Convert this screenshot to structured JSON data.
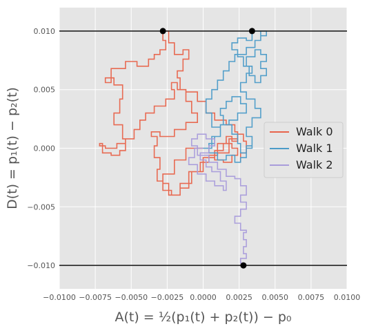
{
  "chart_data": {
    "type": "line",
    "title": "",
    "xlabel": "A(t) = ½(p₁(t) + p₂(t)) − p₀",
    "ylabel": "D(t) = p₁(t) − p₂(t)",
    "xlim": [
      -0.01,
      0.01
    ],
    "ylim": [
      -0.012,
      0.012
    ],
    "x_ticks": [
      -0.01,
      -0.0075,
      -0.005,
      -0.0025,
      0.0,
      0.0025,
      0.005,
      0.0075,
      0.01
    ],
    "x_tick_labels": [
      "−0.0100",
      "−0.0075",
      "−0.0050",
      "−0.0025",
      "0.0000",
      "0.0025",
      "0.0050",
      "0.0075",
      "0.0100"
    ],
    "y_ticks": [
      -0.01,
      -0.005,
      0.0,
      0.005,
      0.01
    ],
    "y_tick_labels": [
      "−0.010",
      "−0.005",
      "0.000",
      "0.005",
      "0.010"
    ],
    "grid": true,
    "legend_position": "center-right",
    "boundaries": [
      0.01,
      -0.01
    ],
    "boundary_color": "#222222",
    "series": [
      {
        "name": "Walk 0",
        "color": "#E8634A",
        "path": [
          [
            0.0,
            0.0
          ],
          [
            -0.0012,
            -0.001
          ],
          [
            -0.002,
            -0.0022
          ],
          [
            -0.0028,
            -0.003
          ],
          [
            -0.0024,
            -0.004
          ],
          [
            -0.0016,
            -0.0034
          ],
          [
            -0.001,
            -0.002
          ],
          [
            -0.0002,
            -0.0012
          ],
          [
            0.0004,
            -0.0006
          ],
          [
            0.001,
            0.0004
          ],
          [
            0.0016,
            0.001
          ],
          [
            0.002,
            0.0006
          ],
          [
            0.0024,
            0.0014
          ],
          [
            0.0022,
            0.002
          ],
          [
            0.0016,
            0.0024
          ],
          [
            0.0008,
            0.003
          ],
          [
            0.0002,
            0.004
          ],
          [
            -0.0004,
            0.0048
          ],
          [
            -0.0012,
            0.005
          ],
          [
            -0.0018,
            0.0056
          ],
          [
            -0.0022,
            0.005
          ],
          [
            -0.002,
            0.0042
          ],
          [
            -0.0026,
            0.0036
          ],
          [
            -0.0034,
            0.003
          ],
          [
            -0.004,
            0.0024
          ],
          [
            -0.0044,
            0.0016
          ],
          [
            -0.0048,
            0.0008
          ],
          [
            -0.0054,
            0.0004
          ],
          [
            -0.006,
            0.0
          ],
          [
            -0.0068,
            0.0002
          ],
          [
            -0.0072,
            0.0004
          ],
          [
            -0.007,
            -0.0004
          ],
          [
            -0.0064,
            -0.0006
          ],
          [
            -0.0058,
            -0.0002
          ],
          [
            -0.0054,
            0.0008
          ],
          [
            -0.0056,
            0.002
          ],
          [
            -0.0062,
            0.003
          ],
          [
            -0.0058,
            0.0042
          ],
          [
            -0.0056,
            0.0054
          ],
          [
            -0.0062,
            0.006
          ],
          [
            -0.0068,
            0.0056
          ],
          [
            -0.0064,
            0.0068
          ],
          [
            -0.0054,
            0.0074
          ],
          [
            -0.0046,
            0.007
          ],
          [
            -0.0038,
            0.0076
          ],
          [
            -0.0034,
            0.008
          ],
          [
            -0.003,
            0.0084
          ],
          [
            -0.0026,
            0.0092
          ],
          [
            -0.0028,
            0.01
          ],
          [
            -0.0024,
            0.009
          ],
          [
            -0.002,
            0.008
          ],
          [
            -0.0014,
            0.0084
          ],
          [
            -0.001,
            0.0076
          ],
          [
            -0.0014,
            0.0066
          ],
          [
            -0.0018,
            0.006
          ],
          [
            -0.0016,
            0.005
          ],
          [
            -0.0012,
            0.004
          ],
          [
            -0.0008,
            0.003
          ],
          [
            -0.0004,
            0.0022
          ],
          [
            -0.0012,
            0.0016
          ],
          [
            -0.002,
            0.001
          ],
          [
            -0.003,
            0.0014
          ],
          [
            -0.0036,
            0.001
          ],
          [
            -0.0032,
            0.0002
          ],
          [
            -0.0034,
            -0.0008
          ],
          [
            -0.003,
            -0.0018
          ],
          [
            -0.0032,
            -0.0028
          ],
          [
            -0.0028,
            -0.0036
          ],
          [
            -0.0022,
            -0.004
          ],
          [
            -0.0016,
            -0.003
          ],
          [
            -0.0008,
            -0.002
          ],
          [
            0.0,
            -0.0008
          ],
          [
            0.0008,
            -0.0002
          ],
          [
            0.0014,
            0.0004
          ],
          [
            0.002,
            0.0
          ],
          [
            0.0024,
            -0.0006
          ],
          [
            0.002,
            -0.0012
          ],
          [
            0.0014,
            -0.001
          ],
          [
            0.0008,
            -0.0004
          ],
          [
            0.0018,
            0.0008
          ],
          [
            0.0024,
            0.0012
          ],
          [
            0.0028,
            0.0006
          ],
          [
            0.003,
            -0.0004
          ],
          [
            0.0026,
            -0.0012
          ]
        ]
      },
      {
        "name": "Walk 1",
        "color": "#4B9BC8",
        "path": [
          [
            0.0,
            0.0
          ],
          [
            0.0006,
            0.001
          ],
          [
            0.0012,
            0.002
          ],
          [
            0.0018,
            0.0024
          ],
          [
            0.0024,
            0.003
          ],
          [
            0.003,
            0.0038
          ],
          [
            0.0026,
            0.0044
          ],
          [
            0.002,
            0.004
          ],
          [
            0.0016,
            0.0034
          ],
          [
            0.0012,
            0.0028
          ],
          [
            0.0014,
            0.002
          ],
          [
            0.002,
            0.0012
          ],
          [
            0.0024,
            0.0004
          ],
          [
            0.0026,
            -0.0004
          ],
          [
            0.003,
            0.0002
          ],
          [
            0.0034,
            0.001
          ],
          [
            0.003,
            0.0018
          ],
          [
            0.0034,
            0.0026
          ],
          [
            0.004,
            0.0034
          ],
          [
            0.0036,
            0.0042
          ],
          [
            0.003,
            0.0048
          ],
          [
            0.0026,
            0.0056
          ],
          [
            0.003,
            0.0064
          ],
          [
            0.0034,
            0.007
          ],
          [
            0.003,
            0.0078
          ],
          [
            0.0036,
            0.0084
          ],
          [
            0.004,
            0.008
          ],
          [
            0.0044,
            0.0074
          ],
          [
            0.004,
            0.0068
          ],
          [
            0.0044,
            0.0062
          ],
          [
            0.004,
            0.0056
          ],
          [
            0.0036,
            0.0062
          ],
          [
            0.0032,
            0.007
          ],
          [
            0.0028,
            0.0078
          ],
          [
            0.0024,
            0.0084
          ],
          [
            0.002,
            0.009
          ],
          [
            0.0024,
            0.0094
          ],
          [
            0.003,
            0.0092
          ],
          [
            0.0034,
            0.01
          ],
          [
            0.004,
            0.0096
          ],
          [
            0.0044,
            0.01
          ],
          [
            0.004,
            0.0092
          ],
          [
            0.0036,
            0.0086
          ],
          [
            0.003,
            0.008
          ],
          [
            0.0022,
            0.0074
          ],
          [
            0.0018,
            0.0066
          ],
          [
            0.0014,
            0.0058
          ],
          [
            0.001,
            0.005
          ],
          [
            0.0006,
            0.0042
          ],
          [
            0.0002,
            0.003
          ],
          [
            0.0006,
            0.0018
          ],
          [
            0.0012,
            0.001
          ],
          [
            0.0008,
            0.0004
          ],
          [
            0.0004,
            -0.0004
          ],
          [
            0.001,
            -0.001
          ],
          [
            0.0016,
            -0.0006
          ],
          [
            0.0022,
            -0.0012
          ],
          [
            0.0026,
            -0.0008
          ],
          [
            0.003,
            0.0
          ],
          [
            0.0034,
            0.0004
          ]
        ]
      },
      {
        "name": "Walk 2",
        "color": "#A99CDB",
        "path": [
          [
            0.0,
            0.0
          ],
          [
            -0.0006,
            -0.0008
          ],
          [
            -0.001,
            -0.0014
          ],
          [
            -0.0004,
            -0.0022
          ],
          [
            0.0002,
            -0.0028
          ],
          [
            0.0008,
            -0.0032
          ],
          [
            0.0014,
            -0.0036
          ],
          [
            0.0016,
            -0.0028
          ],
          [
            0.0012,
            -0.002
          ],
          [
            0.0006,
            -0.0016
          ],
          [
            0.0002,
            -0.001
          ],
          [
            -0.0002,
            -0.0004
          ],
          [
            0.0004,
            0.0002
          ],
          [
            0.0008,
            0.0008
          ],
          [
            0.0002,
            0.0012
          ],
          [
            -0.0004,
            0.0008
          ],
          [
            -0.0008,
            0.0002
          ],
          [
            -0.0004,
            -0.0006
          ],
          [
            0.0004,
            -0.0012
          ],
          [
            0.001,
            -0.0018
          ],
          [
            0.0016,
            -0.0024
          ],
          [
            0.0022,
            -0.0026
          ],
          [
            0.0026,
            -0.0032
          ],
          [
            0.003,
            -0.004
          ],
          [
            0.0026,
            -0.0046
          ],
          [
            0.003,
            -0.0052
          ],
          [
            0.0026,
            -0.0058
          ],
          [
            0.0022,
            -0.0064
          ],
          [
            0.0026,
            -0.007
          ],
          [
            0.003,
            -0.0072
          ],
          [
            0.0028,
            -0.0078
          ],
          [
            0.003,
            -0.0084
          ],
          [
            0.0028,
            -0.009
          ],
          [
            0.003,
            -0.0094
          ],
          [
            0.0026,
            -0.0098
          ],
          [
            0.0028,
            -0.01
          ]
        ]
      }
    ],
    "endpoints": [
      {
        "x": -0.0028,
        "y": 0.01
      },
      {
        "x": 0.0034,
        "y": 0.01
      },
      {
        "x": 0.0028,
        "y": -0.01
      }
    ]
  }
}
